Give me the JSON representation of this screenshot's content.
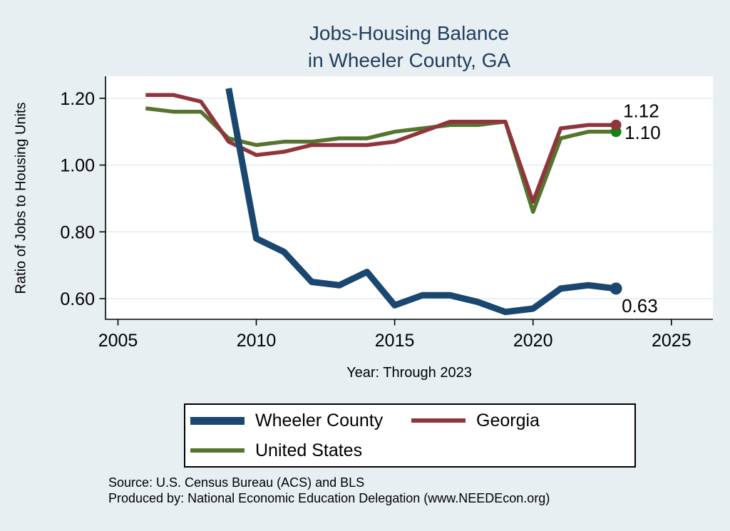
{
  "header": {
    "title_color": "#1f3d5f"
  },
  "chart_data": {
    "type": "line",
    "title": "Jobs-Housing Balance in Wheeler County, GA",
    "title_lines": [
      "Jobs-Housing Balance",
      "in Wheeler County, GA"
    ],
    "xlabel": "Year: Through 2023",
    "ylabel": "Ratio of Jobs to Housing Units",
    "x_ticks": [
      2005,
      2010,
      2015,
      2020,
      2025
    ],
    "y_ticks": [
      0.6,
      0.8,
      1.0,
      1.2
    ],
    "xlim": [
      2004.55,
      2026.5
    ],
    "ylim": [
      0.538,
      1.266
    ],
    "grid": "horizontal-only",
    "background": "#e8eff2",
    "plot_background": "#ffffff",
    "gridline_color": "#dfecf0",
    "legend_position": "bottom",
    "series": [
      {
        "name": "Wheeler County",
        "color": "#1a476f",
        "line_width": 9,
        "marker_color": "#1a476f",
        "end_label": "0.63",
        "x": [
          2009,
          2010,
          2011,
          2012,
          2013,
          2014,
          2015,
          2016,
          2017,
          2018,
          2019,
          2020,
          2021,
          2022,
          2023
        ],
        "y": [
          1.23,
          0.78,
          0.74,
          0.65,
          0.64,
          0.68,
          0.58,
          0.61,
          0.61,
          0.59,
          0.56,
          0.57,
          0.63,
          0.64,
          0.63
        ]
      },
      {
        "name": "Georgia",
        "color": "#90353b",
        "line_width": 5.5,
        "marker_color": "#90353b",
        "end_label": "1.12",
        "x": [
          2006,
          2007,
          2008,
          2009,
          2010,
          2011,
          2012,
          2013,
          2014,
          2015,
          2016,
          2017,
          2018,
          2019,
          2020,
          2021,
          2022,
          2023
        ],
        "y": [
          1.21,
          1.21,
          1.19,
          1.07,
          1.03,
          1.04,
          1.06,
          1.06,
          1.06,
          1.07,
          1.1,
          1.13,
          1.13,
          1.13,
          0.89,
          1.11,
          1.12,
          1.12
        ]
      },
      {
        "name": "United States",
        "color": "#55752f",
        "line_width": 5.5,
        "marker_color": "#0e870e",
        "end_label": "1.10",
        "x": [
          2006,
          2007,
          2008,
          2009,
          2010,
          2011,
          2012,
          2013,
          2014,
          2015,
          2016,
          2017,
          2018,
          2019,
          2020,
          2021,
          2022,
          2023
        ],
        "y": [
          1.17,
          1.16,
          1.16,
          1.08,
          1.06,
          1.07,
          1.07,
          1.08,
          1.08,
          1.1,
          1.11,
          1.12,
          1.12,
          1.13,
          0.86,
          1.08,
          1.1,
          1.1
        ]
      }
    ]
  },
  "footer": {
    "source": "Source: U.S. Census Bureau (ACS) and BLS",
    "produced_by": "Produced by: National Economic Education Delegation (www.NEEDEcon.org)"
  }
}
